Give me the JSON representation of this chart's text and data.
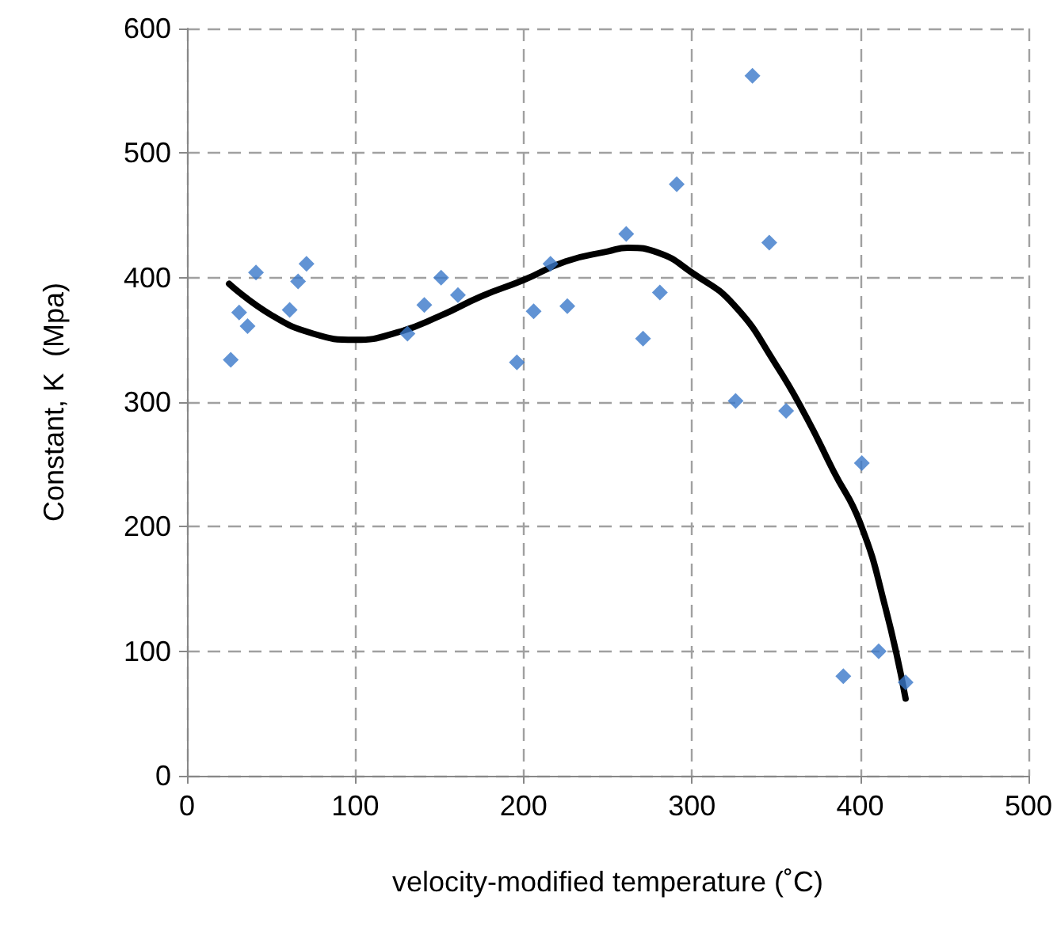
{
  "chart_data": {
    "type": "scatter",
    "xlabel": "velocity-modified temperature (˚C)",
    "ylabel": "Constant, K  (Mpa)",
    "xlim": [
      0,
      500
    ],
    "xticks": [
      0,
      100,
      200,
      300,
      400,
      500
    ],
    "ylim": [
      0,
      600
    ],
    "yticks": [
      0,
      100,
      200,
      300,
      400,
      500,
      600
    ],
    "grid": true,
    "series": [
      {
        "color": "#3a78c9",
        "marker": "diamond",
        "x": [
          26,
          31,
          36,
          41,
          61,
          66,
          71,
          131,
          141,
          151,
          161,
          196,
          206,
          216,
          226,
          261,
          271,
          281,
          291,
          326,
          336,
          346,
          356,
          390,
          401,
          411,
          427
        ],
        "values": [
          334,
          372,
          361,
          404,
          374,
          397,
          411,
          355,
          378,
          400,
          386,
          332,
          373,
          411,
          377,
          435,
          351,
          388,
          475,
          301,
          562,
          428,
          293,
          80,
          251,
          100,
          75
        ]
      },
      {
        "type": "line",
        "color": "#000000",
        "marker": "none",
        "line_style": "solid",
        "x": [
          25,
          50,
          75,
          100,
          125,
          150,
          175,
          200,
          225,
          250,
          262,
          280,
          300,
          325,
          350,
          368,
          384,
          400,
          415,
          427
        ],
        "values": [
          395,
          370,
          355,
          350,
          356,
          369,
          385,
          398,
          413,
          421,
          424,
          420,
          404,
          378,
          330,
          288,
          245,
          203,
          135,
          62
        ]
      }
    ]
  }
}
